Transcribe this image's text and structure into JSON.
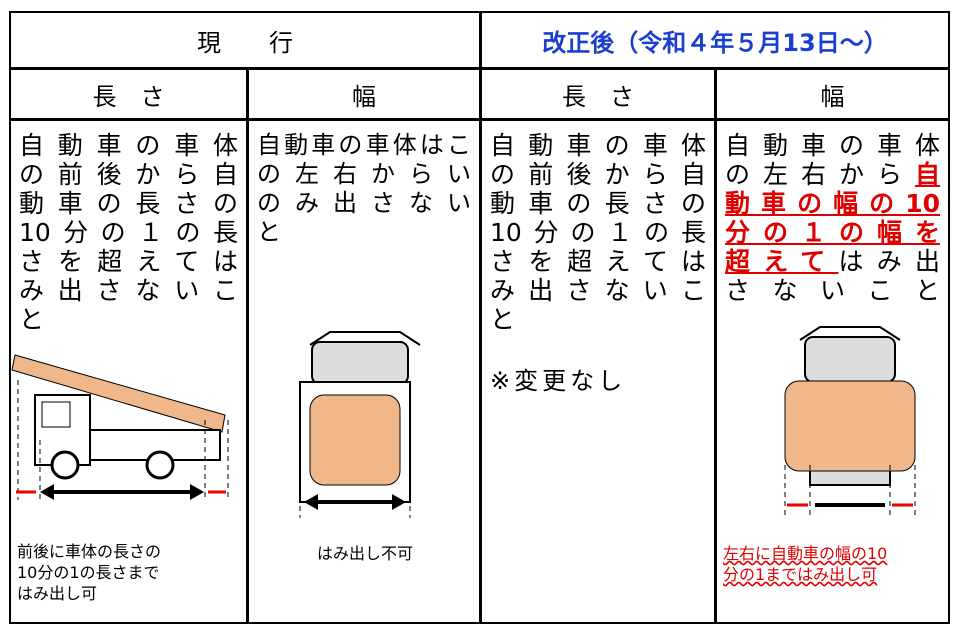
{
  "header": {
    "current": "現　　行",
    "revised": "改正後（令和４年５月13日～）"
  },
  "subheaders": [
    "長　さ",
    "幅",
    "長　さ",
    "幅"
  ],
  "body": [
    {
      "lines": [
        "自動車の車体",
        "の前後から自",
        "動車の長さの",
        "10分の１の長",
        "さを超えては",
        "み出さないこ",
        "と"
      ],
      "note": [
        "前後に車体の長さの",
        "10分の1の長さまで",
        "はみ出し可"
      ]
    },
    {
      "lines": [
        "自動車の車体はこ",
        "の左右からい",
        "のみ出さない",
        "と"
      ],
      "note": [
        "はみ出し不可"
      ]
    },
    {
      "lines": [
        "自動車の車体",
        "の前後から自",
        "動車の長さの",
        "10分の１の長",
        "さを超えては",
        "み出さないこ",
        "と"
      ],
      "extra": "※変更なし"
    },
    {
      "lines": [
        [
          {
            "text": "自動車の車体"
          }
        ],
        [
          {
            "text": "の左右から"
          },
          {
            "text": "自",
            "highlight": true
          }
        ],
        [
          {
            "text": "動車の幅の10",
            "highlight": true
          }
        ],
        [
          {
            "text": "分の１の幅を",
            "highlight": true
          }
        ],
        [
          {
            "text": "超えて",
            "highlight": true
          },
          {
            "text": "はみ出"
          }
        ],
        [
          {
            "text": "さないこと"
          }
        ]
      ],
      "note": [
        "左右に自動車の幅の10",
        "分の1まではみ出し可"
      ],
      "note_highlight": true
    }
  ]
}
